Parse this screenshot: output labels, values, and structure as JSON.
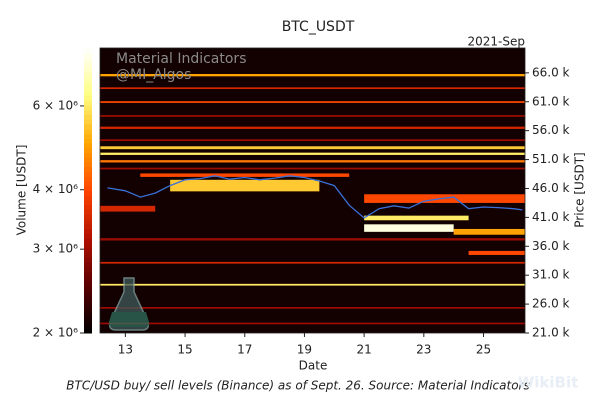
{
  "chart_data": {
    "type": "heatmap",
    "title": "BTC_USDT",
    "x_offset_label": "2021-Sep",
    "xlabel": "Date",
    "ylabel": "Price [USDT]",
    "colorbar_label": "Volume [USDT]",
    "annotations": [
      "Material Indicators",
      "@MI_Algos"
    ],
    "caption": "BTC/USD buy/ sell levels (Binance) as of Sept. 26. Source: Material Indicators",
    "watermark": "WikiBit",
    "xlim": [
      12.15,
      26.39
    ],
    "xticks": [
      13,
      15,
      17,
      19,
      21,
      23,
      25
    ],
    "ylim": [
      21000,
      70300
    ],
    "yticks": [
      {
        "value": 21000,
        "label": "21.0 k"
      },
      {
        "value": 26000,
        "label": "26.0 k"
      },
      {
        "value": 31000,
        "label": "31.0 k"
      },
      {
        "value": 36000,
        "label": "36.0 k"
      },
      {
        "value": 41000,
        "label": "41.0 k"
      },
      {
        "value": 46000,
        "label": "46.0 k"
      },
      {
        "value": 51000,
        "label": "51.0 k"
      },
      {
        "value": 56000,
        "label": "56.0 k"
      },
      {
        "value": 61000,
        "label": "61.0 k"
      },
      {
        "value": 66000,
        "label": "66.0 k"
      }
    ],
    "clim": [
      2000000,
      7940000
    ],
    "color_scale": "log",
    "cticks": [
      {
        "value": 2000000,
        "label": "2 × 10⁶"
      },
      {
        "value": 3000000,
        "label": "3 × 10⁶"
      },
      {
        "value": 4000000,
        "label": "4 × 10⁶"
      },
      {
        "value": 6000000,
        "label": "6 × 10⁶"
      }
    ],
    "colormap": [
      "#000000",
      "#5a0000",
      "#b01000",
      "#ff4500",
      "#ffa500",
      "#ffff80",
      "#ffffff"
    ],
    "bands": [
      {
        "x": [
          12.15,
          26.39
        ],
        "y": [
          21000,
          70300
        ],
        "value": 2100000
      },
      {
        "x": [
          12.15,
          26.39
        ],
        "y": [
          65400,
          65800
        ],
        "value": 5000000
      },
      {
        "x": [
          12.15,
          26.39
        ],
        "y": [
          63200,
          63500
        ],
        "value": 3500000
      },
      {
        "x": [
          12.15,
          26.39
        ],
        "y": [
          60800,
          61100
        ],
        "value": 4000000
      },
      {
        "x": [
          12.15,
          26.39
        ],
        "y": [
          58400,
          58700
        ],
        "value": 3000000
      },
      {
        "x": [
          12.15,
          26.39
        ],
        "y": [
          56300,
          56700
        ],
        "value": 3500000
      },
      {
        "x": [
          12.15,
          26.39
        ],
        "y": [
          54200,
          54500
        ],
        "value": 3000000
      },
      {
        "x": [
          12.15,
          26.39
        ],
        "y": [
          52800,
          53300
        ],
        "value": 5500000
      },
      {
        "x": [
          12.15,
          26.39
        ],
        "y": [
          51800,
          52200
        ],
        "value": 6000000
      },
      {
        "x": [
          12.15,
          26.39
        ],
        "y": [
          50500,
          50900
        ],
        "value": 4500000
      },
      {
        "x": [
          12.15,
          26.39
        ],
        "y": [
          49300,
          49600
        ],
        "value": 3000000
      },
      {
        "x": [
          12.15,
          26.39
        ],
        "y": [
          37000,
          37400
        ],
        "value": 3000000
      },
      {
        "x": [
          12.15,
          26.39
        ],
        "y": [
          33000,
          33300
        ],
        "value": 3500000
      },
      {
        "x": [
          12.15,
          26.39
        ],
        "y": [
          29200,
          29500
        ],
        "value": 6000000
      },
      {
        "x": [
          12.15,
          26.39
        ],
        "y": [
          25200,
          25500
        ],
        "value": 3000000
      },
      {
        "x": [
          12.15,
          26.39
        ],
        "y": [
          22500,
          22800
        ],
        "value": 3000000
      },
      {
        "x": [
          14.5,
          19.5
        ],
        "y": [
          45500,
          47500
        ],
        "value": 5500000
      },
      {
        "x": [
          13.5,
          20.5
        ],
        "y": [
          48000,
          48600
        ],
        "value": 4000000
      },
      {
        "x": [
          21,
          26.39
        ],
        "y": [
          43500,
          45000
        ],
        "value": 4000000
      },
      {
        "x": [
          21,
          24.5
        ],
        "y": [
          40500,
          41300
        ],
        "value": 6000000
      },
      {
        "x": [
          21,
          24
        ],
        "y": [
          38500,
          39800
        ],
        "value": 7500000
      },
      {
        "x": [
          24,
          26.39
        ],
        "y": [
          38000,
          39000
        ],
        "value": 5000000
      },
      {
        "x": [
          24.5,
          26.39
        ],
        "y": [
          34500,
          35200
        ],
        "value": 4000000
      },
      {
        "x": [
          12.15,
          14
        ],
        "y": [
          42000,
          43000
        ],
        "value": 3500000
      }
    ],
    "series": [
      {
        "name": "Price",
        "color": "#3a6fd8",
        "x": [
          12.4,
          13,
          13.5,
          14,
          14.5,
          15,
          15.5,
          16,
          16.5,
          17,
          17.5,
          18,
          18.5,
          19,
          19.5,
          20,
          20.5,
          21,
          21.5,
          22,
          22.5,
          23,
          23.5,
          24,
          24.5,
          25,
          25.5,
          26,
          26.3
        ],
        "values": [
          46100,
          45600,
          44500,
          45200,
          46500,
          47500,
          47700,
          48200,
          47600,
          47900,
          47500,
          47800,
          48200,
          47900,
          47300,
          46500,
          43100,
          40900,
          42500,
          43000,
          42600,
          43800,
          44200,
          44500,
          42500,
          42800,
          42700,
          42500,
          42300
        ]
      }
    ]
  }
}
